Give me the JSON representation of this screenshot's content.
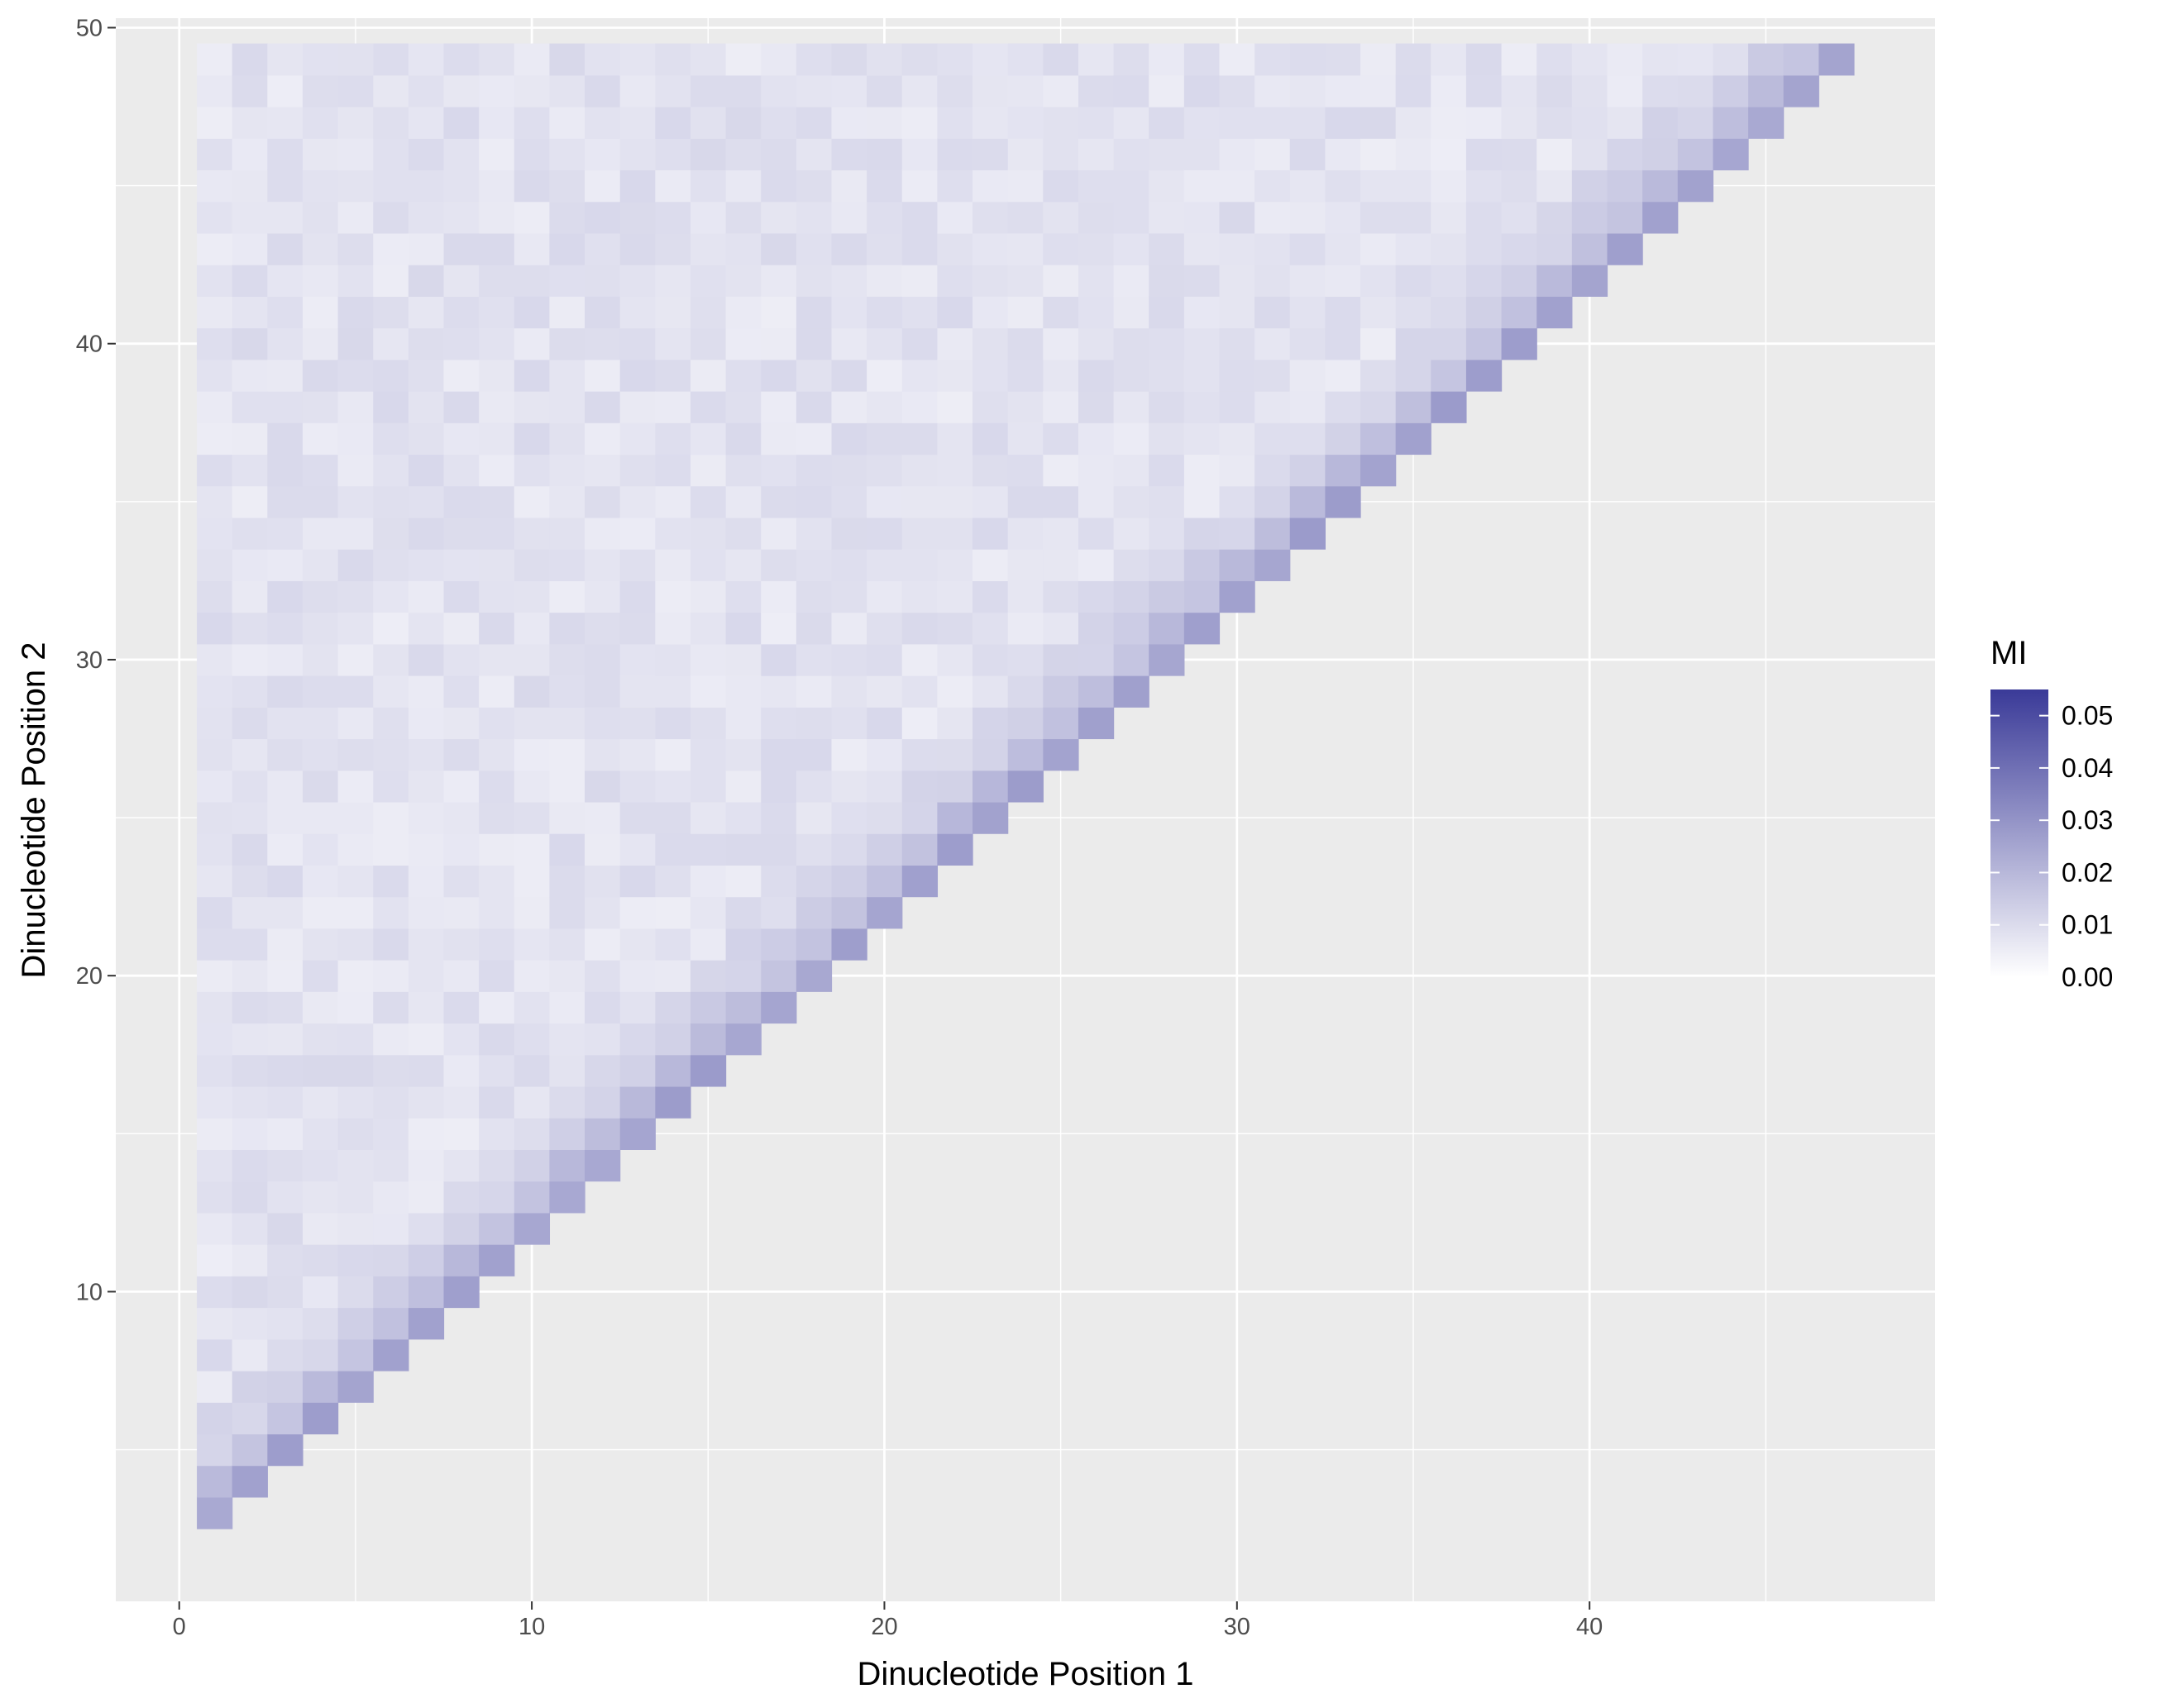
{
  "chart_data": {
    "type": "heatmap",
    "title": "",
    "xlabel": "Dinucleotide Position 1",
    "ylabel": "Dinucleotide Position 2",
    "xlim": [
      -1.8,
      49.8
    ],
    "ylim": [
      0.2,
      50.3
    ],
    "x_ticks": [
      0,
      10,
      20,
      30,
      40
    ],
    "y_ticks": [
      10,
      20,
      30,
      40,
      50
    ],
    "cells": "all integer pairs (i, j) with 1 <= i < j <= 49, j >= i + 2",
    "value_model": {
      "adjacent_diagonal_j_eq_i_plus_2": 0.026,
      "second_diagonal_j_eq_i_plus_3": 0.018,
      "third_diagonal_j_eq_i_plus_4": 0.013,
      "fourth_diagonal_j_eq_i_plus_5": 0.011,
      "far_background": 0.008,
      "far_noise_amplitude": 0.003
    },
    "grid": true,
    "legend": {
      "title": "MI",
      "position": "right",
      "range": [
        0,
        0.055
      ],
      "labels": [
        "0.05",
        "0.04",
        "0.03",
        "0.02",
        "0.01",
        "0.00"
      ],
      "label_values": [
        0.05,
        0.04,
        0.03,
        0.02,
        0.01,
        0.0
      ],
      "color_low": "#ffffff",
      "color_high": "#3a3a98"
    },
    "panel_background": "#ebebeb",
    "grid_color": "#ffffff"
  }
}
